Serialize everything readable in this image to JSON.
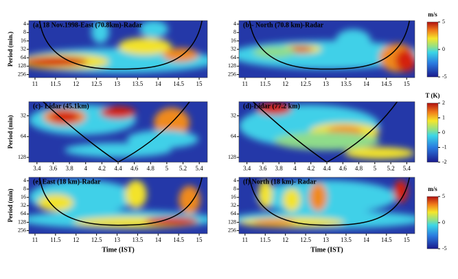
{
  "chart_data": [
    {
      "type": "heatmap",
      "title": "(a) 18 Nov.1998-East (70.8km)-Radar",
      "ylabel": "Period (min.)",
      "xlim": [
        10.85,
        15.2
      ],
      "xticks": [
        11,
        11.5,
        12,
        12.5,
        13,
        13.5,
        14,
        14.5,
        15
      ],
      "ylim": [
        3,
        330
      ],
      "yticks": [
        4,
        8,
        16,
        32,
        64,
        128,
        256
      ],
      "log_y": true
    },
    {
      "type": "heatmap",
      "title": "(b)- North (70.8 km)-Radar",
      "xlim": [
        10.85,
        15.2
      ],
      "xticks": [
        11,
        11.5,
        12,
        12.5,
        13,
        13.5,
        14,
        14.5,
        15
      ],
      "ylim": [
        3,
        330
      ],
      "yticks": [
        4,
        8,
        16,
        32,
        64,
        128,
        256
      ],
      "log_y": true,
      "colorbar": {
        "label": "m/s",
        "lim": [
          -5,
          5
        ],
        "ticks": [
          5,
          0,
          -5
        ]
      }
    },
    {
      "type": "heatmap",
      "title": "(c)- Lidar (45.1km)",
      "ylabel": "Period (min)",
      "xlim": [
        3.3,
        5.5
      ],
      "xticks": [
        3.4,
        3.6,
        3.8,
        4,
        4.2,
        4.4,
        4.6,
        4.8,
        5,
        5.2,
        5.4
      ],
      "ylim": [
        20,
        150
      ],
      "yticks": [
        32,
        64,
        128
      ],
      "log_y": true
    },
    {
      "type": "heatmap",
      "title": "(d)-Lidar (77.2 km)",
      "xlim": [
        3.3,
        5.5
      ],
      "xticks": [
        3.4,
        3.6,
        3.8,
        4,
        4.2,
        4.4,
        4.6,
        4.8,
        5,
        5.2,
        5.4
      ],
      "ylim": [
        20,
        150
      ],
      "yticks": [
        32,
        64,
        128
      ],
      "log_y": true,
      "colorbar": {
        "label": "T (K)",
        "lim": [
          -2,
          2
        ],
        "ticks": [
          2,
          1,
          0,
          -1,
          -2
        ]
      }
    },
    {
      "type": "heatmap",
      "title": "(e) East (18 km)-Radar",
      "ylabel": "Period (min)",
      "xlabel": "Time (IST)",
      "xlim": [
        10.85,
        15.2
      ],
      "xticks": [
        11,
        11.5,
        12,
        12.5,
        13,
        13.5,
        14,
        14.5,
        15
      ],
      "ylim": [
        3,
        330
      ],
      "yticks": [
        4,
        8,
        16,
        32,
        64,
        128,
        256
      ],
      "log_y": true
    },
    {
      "type": "heatmap",
      "title": "(f) North (18 km)- Radar",
      "xlabel": "Time (IST)",
      "xlim": [
        10.85,
        15.2
      ],
      "xticks": [
        11,
        11.5,
        12,
        12.5,
        13,
        13.5,
        14,
        14.5,
        15
      ],
      "ylim": [
        3,
        330
      ],
      "yticks": [
        4,
        8,
        16,
        32,
        64,
        128,
        256
      ],
      "log_y": true,
      "colorbar": {
        "label": "m/s",
        "lim": [
          -5,
          5
        ],
        "ticks": [
          5,
          0,
          -5
        ]
      }
    }
  ]
}
